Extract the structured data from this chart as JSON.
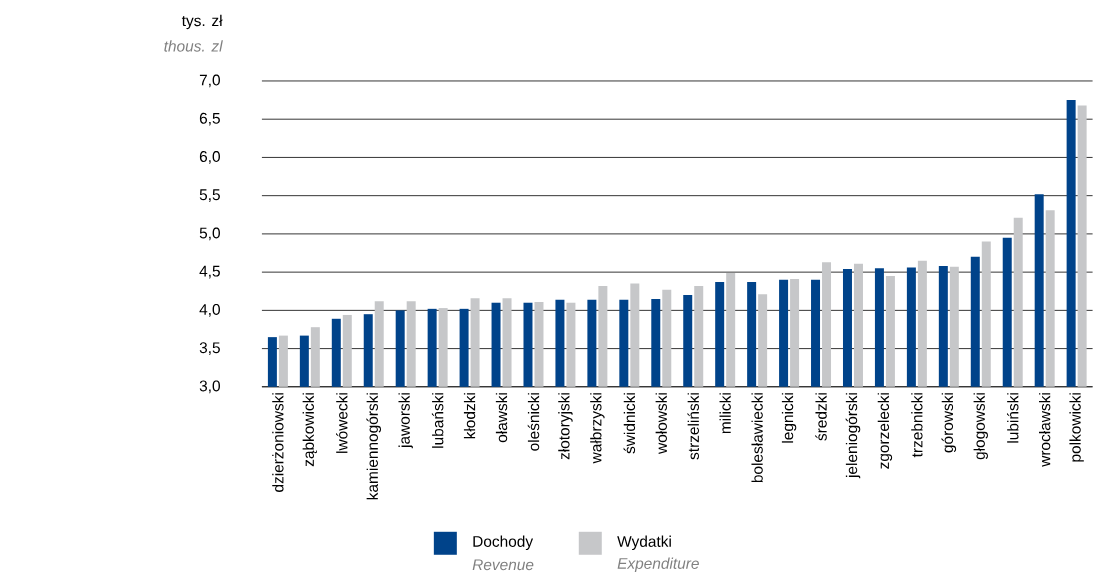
{
  "chart_data": {
    "type": "bar",
    "ylabel": "tys. zł",
    "annotations": [
      "thous. zl",
      "Revenue",
      "Expenditure"
    ],
    "categories": [
      "dzierżoniowski",
      "ząbkowicki",
      "lwówecki",
      "kamiennogórski",
      "jaworski",
      "lubański",
      "kłodzki",
      "oławski",
      "oleśnicki",
      "złotoryjski",
      "wałbrzyski",
      "świdnicki",
      "wołowski",
      "strzeliński",
      "milicki",
      "bolesławiecki",
      "legnicki",
      "średzki",
      "jeleniogórski",
      "zgorzelecki",
      "trzebnicki",
      "górowski",
      "głogowski",
      "lubiński",
      "wrocławski",
      "polkowicki"
    ],
    "series": [
      {
        "name": "Dochody",
        "color": "#00438a",
        "values": [
          3.65,
          3.67,
          3.89,
          3.95,
          4.0,
          4.02,
          4.02,
          4.1,
          4.1,
          4.14,
          4.14,
          4.14,
          4.15,
          4.2,
          4.37,
          4.37,
          4.4,
          4.4,
          4.54,
          4.55,
          4.56,
          4.58,
          4.7,
          4.95,
          5.52,
          6.75
        ]
      },
      {
        "name": "Wydatki",
        "color": "#c6c7c9",
        "values": [
          3.67,
          3.78,
          3.94,
          4.12,
          4.12,
          4.03,
          4.16,
          4.16,
          4.11,
          4.1,
          4.32,
          4.35,
          4.27,
          4.32,
          4.49,
          4.21,
          4.41,
          4.63,
          4.61,
          4.45,
          4.65,
          4.57,
          4.9,
          5.21,
          5.31,
          6.68
        ]
      }
    ],
    "ylim": [
      3,
      7
    ],
    "yticks": [
      {
        "value": 3,
        "label": "3,0"
      },
      {
        "value": 3.5,
        "label": "3,5"
      },
      {
        "value": 4,
        "label": "4,0"
      },
      {
        "value": 4.5,
        "label": "4,5"
      },
      {
        "value": 5,
        "label": "5,0"
      },
      {
        "value": 5.5,
        "label": "5,5"
      },
      {
        "value": 6,
        "label": "6,0"
      },
      {
        "value": 6.5,
        "label": "6,5"
      },
      {
        "value": 7,
        "label": "7,0"
      }
    ],
    "grid": "y",
    "legend": "bottom"
  }
}
